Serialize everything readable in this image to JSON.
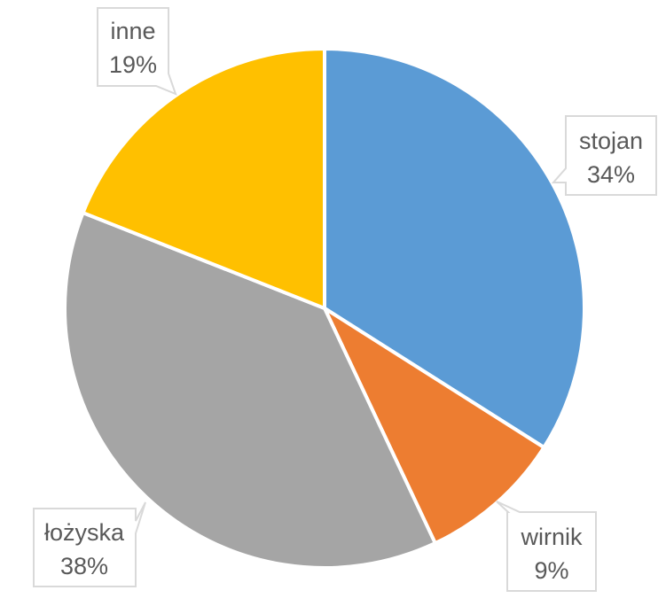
{
  "chart_data": {
    "type": "pie",
    "title": "",
    "slices": [
      {
        "label": "stojan",
        "value": 34,
        "display": "34%",
        "color": "#5b9bd5"
      },
      {
        "label": "wirnik",
        "value": 9,
        "display": "9%",
        "color": "#ed7d31"
      },
      {
        "label": "łożyska",
        "value": 38,
        "display": "38%",
        "color": "#a5a5a5"
      },
      {
        "label": "inne",
        "value": 19,
        "display": "19%",
        "color": "#ffc000"
      }
    ],
    "start_angle_deg": 0,
    "direction": "clockwise",
    "legend": "none",
    "data_labels": "callouts"
  }
}
